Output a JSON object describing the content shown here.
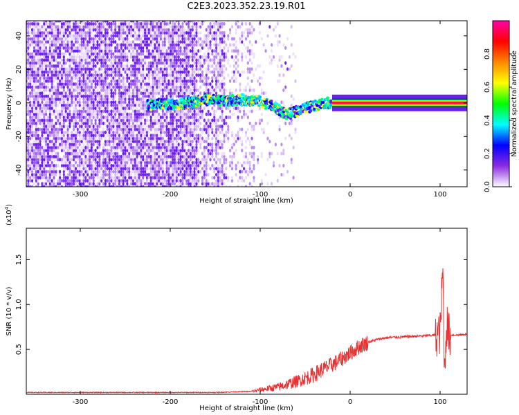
{
  "title": "C2E3.2023.352.23.19.R01",
  "chart_data": [
    {
      "type": "heatmap",
      "xlabel": "Height of straight line (km)",
      "ylabel": "Frequency (Hz)",
      "xlim": [
        -360,
        130
      ],
      "ylim": [
        -50,
        49
      ],
      "xticks": [
        -300,
        -200,
        -100,
        0,
        100
      ],
      "xtick_labels": [
        "-300",
        "-200",
        "-100",
        "0",
        "100"
      ],
      "yticks": [
        -40,
        -20,
        0,
        20,
        40
      ],
      "ytick_labels": [
        "-40",
        "-20",
        "0",
        "20",
        "40"
      ],
      "colorbar": {
        "label": "Normalized spectral amplitude",
        "range": [
          0,
          1
        ],
        "ticks": [
          0.0,
          0.2,
          0.4,
          0.6,
          0.8
        ],
        "tick_labels": [
          "0.0",
          "0.2",
          "0.4",
          "0.6",
          "0.8"
        ],
        "colors": [
          "#ffffff",
          "#8a2be2",
          "#0000ff",
          "#00ffff",
          "#00ff00",
          "#ffff00",
          "#ff8800",
          "#ff0000",
          "#ff00aa"
        ]
      },
      "ridge": [
        {
          "x": -225,
          "y": -1
        },
        {
          "x": -200,
          "y": -1
        },
        {
          "x": -180,
          "y": 0
        },
        {
          "x": -160,
          "y": 2
        },
        {
          "x": -140,
          "y": 1
        },
        {
          "x": -120,
          "y": 2
        },
        {
          "x": -100,
          "y": 1
        },
        {
          "x": -90,
          "y": -1
        },
        {
          "x": -80,
          "y": -4
        },
        {
          "x": -70,
          "y": -7
        },
        {
          "x": -60,
          "y": -5
        },
        {
          "x": -50,
          "y": -3
        },
        {
          "x": -40,
          "y": -2
        },
        {
          "x": -30,
          "y": 0
        },
        {
          "x": -20,
          "y": 0
        },
        {
          "x": 0,
          "y": 0
        },
        {
          "x": 100,
          "y": 0
        },
        {
          "x": 130,
          "y": 0
        }
      ]
    },
    {
      "type": "line",
      "xlabel": "Height of straight line (km)",
      "ylabel": "SNR (10 * v/v)",
      "y_multiplier": "(x10",
      "y_multiplier_exp": "4",
      "y_multiplier_close": ")",
      "xlim": [
        -360,
        130
      ],
      "ylim": [
        0,
        1.85
      ],
      "xticks": [
        -300,
        -200,
        -100,
        0,
        100
      ],
      "xtick_labels": [
        "-300",
        "-200",
        "-100",
        "0",
        "100"
      ],
      "yticks": [
        0.5,
        1.0,
        1.5
      ],
      "ytick_labels": [
        "0.5",
        "1.0",
        "1.5"
      ],
      "color": "#e83232",
      "x": [
        -360,
        -300,
        -200,
        -150,
        -120,
        -110,
        -100,
        -80,
        -60,
        -50,
        -40,
        -30,
        -20,
        -10,
        0,
        10,
        20,
        30,
        40,
        60,
        80,
        95,
        100,
        103,
        105,
        107,
        110,
        120,
        130
      ],
      "y": [
        0.02,
        0.02,
        0.02,
        0.02,
        0.03,
        0.03,
        0.05,
        0.08,
        0.14,
        0.18,
        0.22,
        0.28,
        0.33,
        0.39,
        0.46,
        0.53,
        0.58,
        0.61,
        0.63,
        0.64,
        0.65,
        0.66,
        0.68,
        1.4,
        0.2,
        0.8,
        0.66,
        0.66,
        0.67
      ]
    }
  ]
}
